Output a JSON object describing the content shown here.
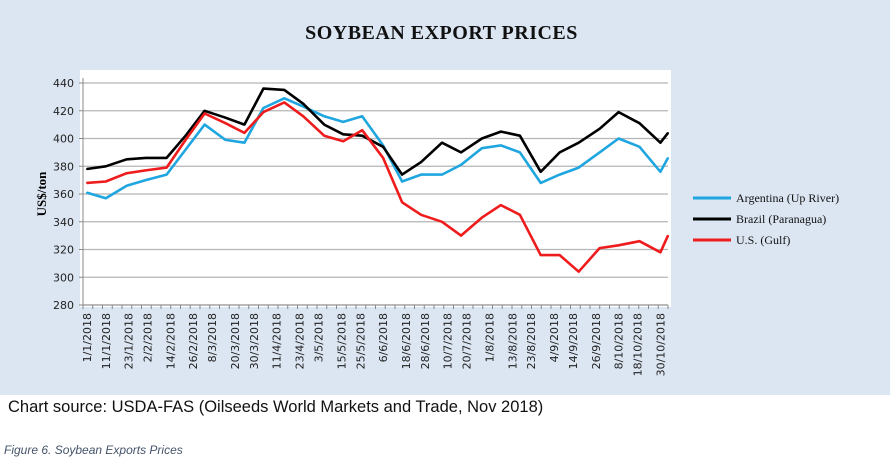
{
  "chart_data": {
    "type": "line",
    "title": "SOYBEAN EXPORT PRICES",
    "xlabel": "",
    "ylabel": "US$/ton",
    "ylim": [
      280,
      440
    ],
    "yticks": [
      280,
      300,
      320,
      340,
      360,
      380,
      400,
      420,
      440
    ],
    "grid": true,
    "legend_position": "right",
    "xtick_labels": [
      "1/1/2018",
      "11/1/2018",
      "23/1/2018",
      "2/2/2018",
      "14/2/2018",
      "26/2/2018",
      "8/3/2018",
      "20/3/2018",
      "30/3/2018",
      "11/4/2018",
      "23/4/2018",
      "3/5/2018",
      "15/5/2018",
      "25/5/2018",
      "6/6/2018",
      "18/6/2018",
      "28/6/2018",
      "10/7/2018",
      "20/7/2018",
      "1/8/2018",
      "13/8/2018",
      "23/8/2018",
      "4/9/2018",
      "14/9/2018",
      "26/9/2018",
      "8/10/2018",
      "18/10/2018",
      "30/10/2018"
    ],
    "x": [
      "2018-01-01",
      "2018-01-11",
      "2018-01-22",
      "2018-02-01",
      "2018-02-12",
      "2018-02-22",
      "2018-03-04",
      "2018-03-15",
      "2018-03-25",
      "2018-04-04",
      "2018-04-15",
      "2018-04-25",
      "2018-05-06",
      "2018-05-16",
      "2018-05-26",
      "2018-06-06",
      "2018-06-16",
      "2018-06-26",
      "2018-07-07",
      "2018-07-17",
      "2018-07-28",
      "2018-08-07",
      "2018-08-17",
      "2018-08-28",
      "2018-09-07",
      "2018-09-17",
      "2018-09-28",
      "2018-10-08",
      "2018-10-19",
      "2018-10-30",
      "2018-11-03"
    ],
    "series": [
      {
        "name": "Argentina (Up River)",
        "color": "#1fa6e0",
        "values": [
          361,
          357,
          366,
          370,
          374,
          392,
          410,
          399,
          397,
          422,
          429,
          423,
          416,
          412,
          416,
          395,
          369,
          374,
          374,
          381,
          393,
          395,
          390,
          368,
          374,
          379,
          390,
          400,
          394,
          376,
          386
        ]
      },
      {
        "name": "Brazil (Paranagua)",
        "color": "#000000",
        "values": [
          378,
          380,
          385,
          386,
          386,
          402,
          420,
          415,
          410,
          436,
          435,
          425,
          410,
          403,
          402,
          394,
          374,
          383,
          397,
          390,
          400,
          405,
          402,
          376,
          390,
          397,
          407,
          419,
          411,
          397,
          404
        ]
      },
      {
        "name": "U.S. (Gulf)",
        "color": "#ee1c1c",
        "values": [
          368,
          369,
          375,
          377,
          379,
          399,
          418,
          411,
          404,
          419,
          426,
          416,
          402,
          398,
          406,
          386,
          354,
          345,
          340,
          330,
          343,
          352,
          345,
          316,
          316,
          304,
          321,
          323,
          326,
          318,
          330
        ]
      }
    ]
  },
  "source_text": "Chart source: USDA-FAS (Oilseeds World Markets and Trade, Nov 2018)",
  "figure_caption": "Figure 6. Soybean Exports Prices"
}
